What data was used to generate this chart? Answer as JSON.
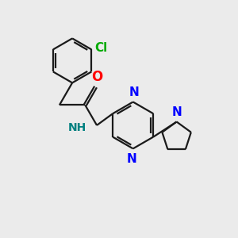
{
  "background_color": "#ebebeb",
  "bond_color": "#1a1a1a",
  "N_color": "#0000ff",
  "O_color": "#ff0000",
  "Cl_color": "#00aa00",
  "NH_color": "#008080",
  "line_width": 1.6,
  "dbo": 0.055,
  "font_size": 10,
  "figsize": [
    3.0,
    3.0
  ],
  "dpi": 100,
  "xlim": [
    0,
    10
  ],
  "ylim": [
    0,
    10
  ]
}
